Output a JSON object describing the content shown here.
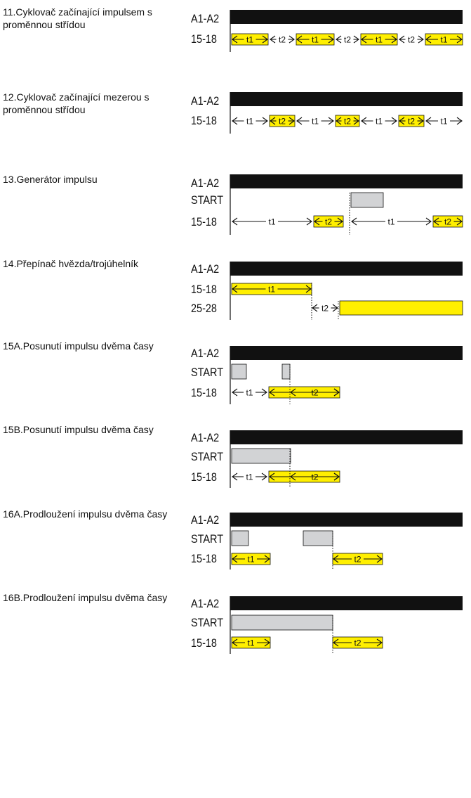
{
  "modes": [
    {
      "title": "11.Cyklovač začínající impulsem s proměnnou střídou",
      "signals": [
        "A1-A2",
        "15-18"
      ]
    },
    {
      "title": "12.Cyklovač začínající mezerou s proměnnou střídou",
      "signals": [
        "A1-A2",
        "15-18"
      ]
    },
    {
      "title": "13.Generátor impulsu",
      "signals": [
        "A1-A2",
        "START",
        "15-18"
      ]
    },
    {
      "title": "14.Přepínač hvězda/trojúhelník",
      "signals": [
        "A1-A2",
        "15-18",
        "25-28"
      ]
    },
    {
      "title": "15A.Posunutí impulsu dvěma časy",
      "signals": [
        "A1-A2",
        "START",
        "15-18"
      ]
    },
    {
      "title": "15B.Posunutí impulsu dvěma časy",
      "signals": [
        "A1-A2",
        "START",
        "15-18"
      ]
    },
    {
      "title": "16A.Prodloužení impulsu dvěma časy",
      "signals": [
        "A1-A2",
        "START",
        "15-18"
      ]
    },
    {
      "title": "16B.Prodloužení impulsu dvěma časy",
      "signals": [
        "A1-A2",
        "START",
        "15-18"
      ]
    }
  ],
  "time_labels": {
    "t1": "t1",
    "t2": "t2"
  },
  "colors": {
    "power": "#111111",
    "output": "#ffef00",
    "start": "#d2d3d5",
    "line": "#111111"
  }
}
